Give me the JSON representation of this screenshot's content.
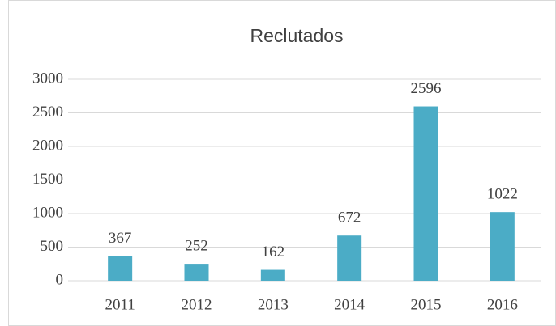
{
  "chart_data": {
    "type": "bar",
    "title": "Reclutados",
    "categories": [
      "2011",
      "2012",
      "2013",
      "2014",
      "2015",
      "2016"
    ],
    "values": [
      367,
      252,
      162,
      672,
      2596,
      1022
    ],
    "color": "#4bacc6",
    "ylim": [
      0,
      3000
    ],
    "yticks": [
      0,
      500,
      1000,
      1500,
      2000,
      2500,
      3000
    ],
    "grid": true
  }
}
